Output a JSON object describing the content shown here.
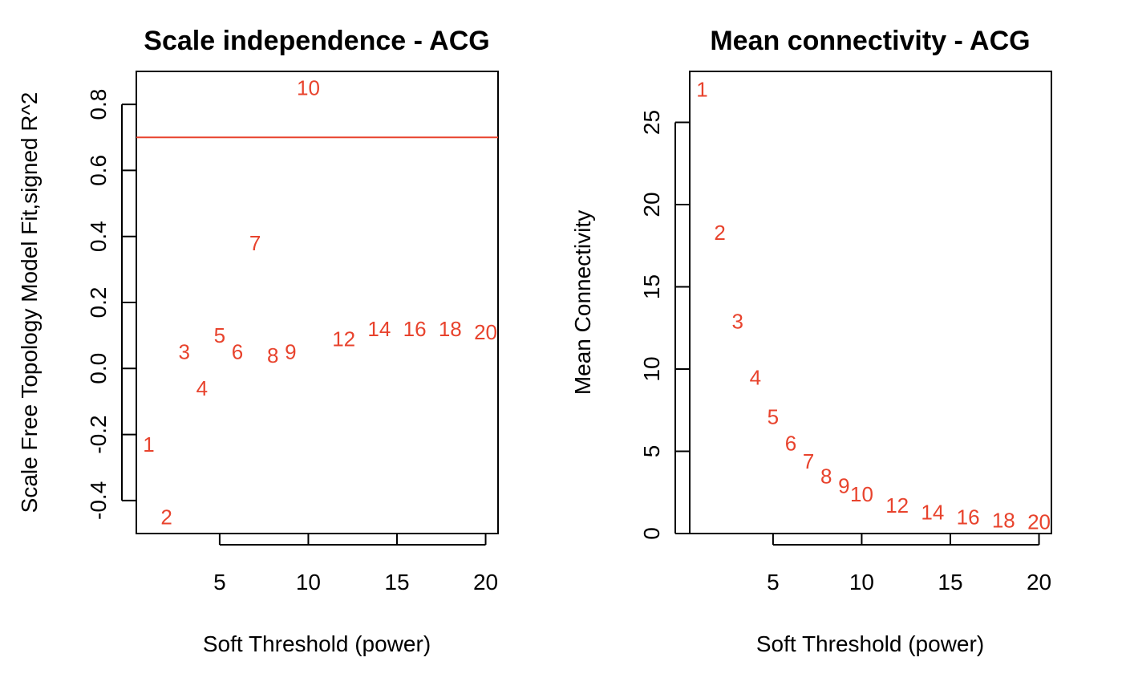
{
  "chart_data": [
    {
      "type": "scatter",
      "title": "Scale independence - ACG",
      "xlabel": "Soft Threshold (power)",
      "ylabel": "Scale Free Topology Model Fit,signed R^2",
      "xlim": [
        0.3,
        20.7
      ],
      "ylim": [
        -0.5,
        0.9
      ],
      "x_ticks": [
        5,
        10,
        15,
        20
      ],
      "y_ticks": [
        -0.4,
        -0.2,
        0.0,
        0.2,
        0.4,
        0.6,
        0.8
      ],
      "y_tick_labels": [
        "-0.4",
        "-0.2",
        "0.0",
        "0.2",
        "0.4",
        "0.6",
        "0.8"
      ],
      "hline": 0.7,
      "hline_color": "#e8432d",
      "point_color": "#e8432d",
      "points": [
        {
          "x": 1,
          "y": -0.23,
          "label": "1"
        },
        {
          "x": 2,
          "y": -0.45,
          "label": "2"
        },
        {
          "x": 3,
          "y": 0.05,
          "label": "3"
        },
        {
          "x": 4,
          "y": -0.06,
          "label": "4"
        },
        {
          "x": 5,
          "y": 0.1,
          "label": "5"
        },
        {
          "x": 6,
          "y": 0.05,
          "label": "6"
        },
        {
          "x": 7,
          "y": 0.38,
          "label": "7"
        },
        {
          "x": 8,
          "y": 0.04,
          "label": "8"
        },
        {
          "x": 9,
          "y": 0.05,
          "label": "9"
        },
        {
          "x": 10,
          "y": 0.85,
          "label": "10"
        },
        {
          "x": 12,
          "y": 0.09,
          "label": "12"
        },
        {
          "x": 14,
          "y": 0.12,
          "label": "14"
        },
        {
          "x": 16,
          "y": 0.12,
          "label": "16"
        },
        {
          "x": 18,
          "y": 0.12,
          "label": "18"
        },
        {
          "x": 20,
          "y": 0.11,
          "label": "20"
        }
      ]
    },
    {
      "type": "scatter",
      "title": "Mean connectivity - ACG",
      "xlabel": "Soft Threshold (power)",
      "ylabel": "Mean Connectivity",
      "xlim": [
        0.3,
        20.7
      ],
      "ylim": [
        0,
        28.1
      ],
      "x_ticks": [
        5,
        10,
        15,
        20
      ],
      "y_ticks": [
        0,
        5,
        10,
        15,
        20,
        25
      ],
      "y_tick_labels": [
        "0",
        "5",
        "10",
        "15",
        "20",
        "25"
      ],
      "point_color": "#e8432d",
      "points": [
        {
          "x": 1,
          "y": 27.0,
          "label": "1"
        },
        {
          "x": 2,
          "y": 18.3,
          "label": "2"
        },
        {
          "x": 3,
          "y": 12.9,
          "label": "3"
        },
        {
          "x": 4,
          "y": 9.5,
          "label": "4"
        },
        {
          "x": 5,
          "y": 7.1,
          "label": "5"
        },
        {
          "x": 6,
          "y": 5.5,
          "label": "6"
        },
        {
          "x": 7,
          "y": 4.4,
          "label": "7"
        },
        {
          "x": 8,
          "y": 3.5,
          "label": "8"
        },
        {
          "x": 9,
          "y": 2.9,
          "label": "9"
        },
        {
          "x": 10,
          "y": 2.4,
          "label": "10"
        },
        {
          "x": 12,
          "y": 1.7,
          "label": "12"
        },
        {
          "x": 14,
          "y": 1.3,
          "label": "14"
        },
        {
          "x": 16,
          "y": 1.0,
          "label": "16"
        },
        {
          "x": 18,
          "y": 0.8,
          "label": "18"
        },
        {
          "x": 20,
          "y": 0.7,
          "label": "20"
        }
      ]
    }
  ]
}
